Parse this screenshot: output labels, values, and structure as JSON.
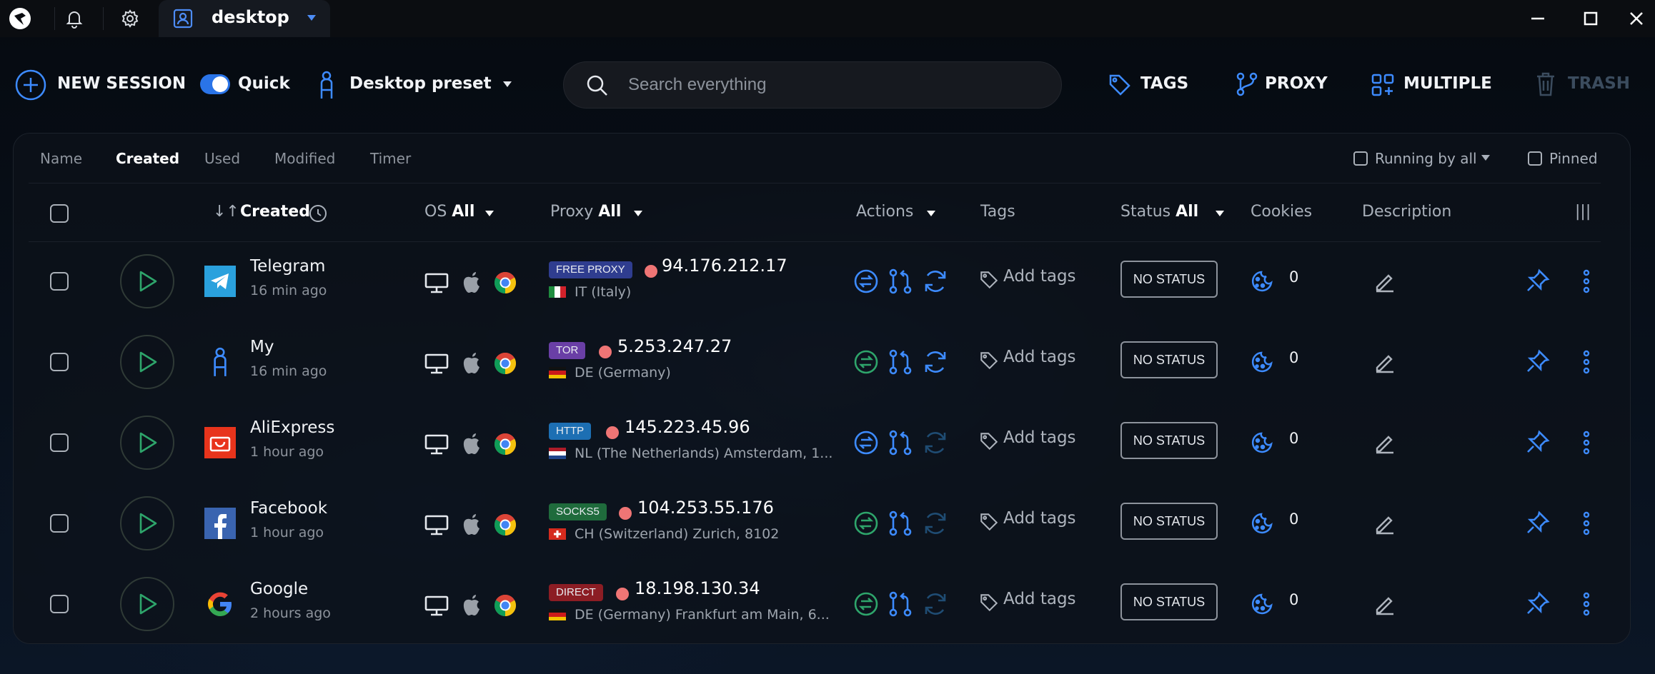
{
  "titlebar": {
    "tab_label": "desktop",
    "icons": [
      "app-logo-icon",
      "bell-icon",
      "gear-icon",
      "desktop-profile-icon",
      "caret-down-icon",
      "minimize-icon",
      "maximize-icon",
      "close-icon"
    ]
  },
  "toolbar": {
    "new_session": "NEW SESSION",
    "quick_label": "Quick",
    "quick_on": true,
    "preset_label": "Desktop preset",
    "search_placeholder": "Search everything",
    "tags": "TAGS",
    "proxy": "PROXY",
    "multiple": "MULTIPLE",
    "trash": "TRASH"
  },
  "subtabs": [
    "Name",
    "Created",
    "Used",
    "Modified",
    "Timer"
  ],
  "active_subtab": "Created",
  "filters": {
    "running": "Running by all",
    "pinned": "Pinned"
  },
  "headers": {
    "created": "Created",
    "sort_arrows": "↓↑",
    "os": "OS",
    "os_value": "All",
    "proxy": "Proxy",
    "proxy_value": "All",
    "actions": "Actions",
    "tags": "Tags",
    "status": "Status",
    "status_value": "All",
    "cookies": "Cookies",
    "description": "Description",
    "columns_icon": "|||"
  },
  "sessions": [
    {
      "name": "Telegram",
      "time": "16 min ago",
      "icon": "telegram-icon",
      "proxy_type": "FREE PROXY",
      "proxy_color": "#2f3d8f",
      "ip": "94.176.212.17",
      "location": "IT (Italy)",
      "flag": "it",
      "add_tags": "Add tags",
      "status": "NO STATUS",
      "cookies": "0"
    },
    {
      "name": "My",
      "time": "16 min ago",
      "icon": "person-icon",
      "proxy_type": "TOR",
      "proxy_color": "#6a3fa6",
      "ip": "5.253.247.27",
      "location": "DE (Germany)",
      "flag": "de",
      "add_tags": "Add tags",
      "status": "NO STATUS",
      "cookies": "0"
    },
    {
      "name": "AliExpress",
      "time": "1 hour ago",
      "icon": "aliexpress-icon",
      "proxy_type": "HTTP",
      "proxy_color": "#1d6fb3",
      "ip": "145.223.45.96",
      "location": "NL (The Netherlands) Amsterdam, 1...",
      "flag": "nl",
      "add_tags": "Add tags",
      "status": "NO STATUS",
      "cookies": "0"
    },
    {
      "name": "Facebook",
      "time": "1 hour ago",
      "icon": "facebook-icon",
      "proxy_type": "SOCKS5",
      "proxy_color": "#1f6b3c",
      "ip": "104.253.55.176",
      "location": "CH (Switzerland) Zurich, 8102",
      "flag": "ch",
      "add_tags": "Add tags",
      "status": "NO STATUS",
      "cookies": "0"
    },
    {
      "name": "Google",
      "time": "2 hours ago",
      "icon": "google-icon",
      "proxy_type": "DIRECT",
      "proxy_color": "#8c1d24",
      "ip": "18.198.130.34",
      "location": "DE (Germany) Frankfurt am Main, 6...",
      "flag": "de",
      "add_tags": "Add tags",
      "status": "NO STATUS",
      "cookies": "0"
    }
  ],
  "colors": {
    "accent": "#3d8bff",
    "green": "#2ea56b",
    "background": "#05090f",
    "ip_dot": "#ef7575"
  }
}
